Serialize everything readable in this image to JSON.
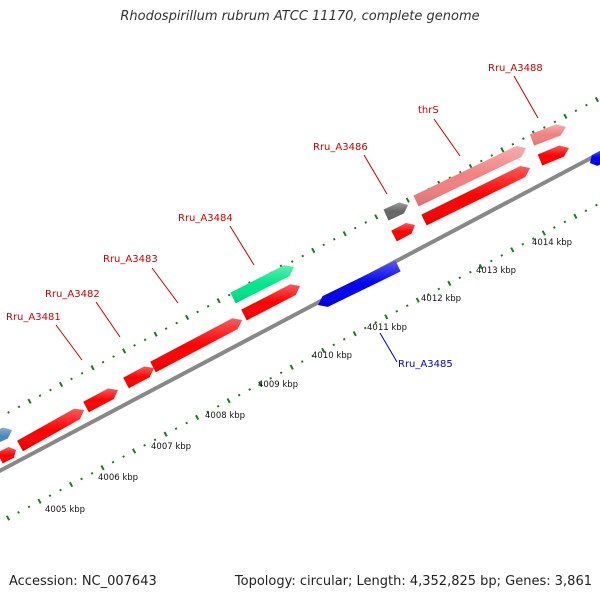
{
  "title": "Rhodospirillum rubrum ATCC 11170, complete genome",
  "footer": {
    "accession": "Accession: NC_007643",
    "summary": "Topology: circular; Length: 4,352,825 bp; Genes: 3,861"
  },
  "colors": {
    "cds_red": "#ff0000",
    "cds_pink": "#f28080",
    "cds_blue": "#0000ee",
    "cds_teal": "#00e68a",
    "cds_steel": "#4a86b8",
    "cds_gray": "#666666",
    "backbone": "#888888",
    "tick_green": "#1f7a1f",
    "label_red": "#cc0000",
    "label_blue": "#0000cc"
  },
  "scale_ticks": [
    "4005 kbp",
    "4006 kbp",
    "4007 kbp",
    "4008 kbp",
    "4009 kbp",
    "4010 kbp",
    "4011 kbp",
    "4012 kbp",
    "4013 kbp",
    "4014 kbp"
  ],
  "genes": [
    {
      "name": "Rru_A3481",
      "color": "label_red"
    },
    {
      "name": "Rru_A3482",
      "color": "label_red"
    },
    {
      "name": "Rru_A3483",
      "color": "label_red"
    },
    {
      "name": "Rru_A3484",
      "color": "label_red"
    },
    {
      "name": "Rru_A3485",
      "color": "label_blue"
    },
    {
      "name": "Rru_A3486",
      "color": "label_red"
    },
    {
      "name": "thrS",
      "color": "label_red"
    },
    {
      "name": "Rru_A3488",
      "color": "label_red"
    }
  ]
}
